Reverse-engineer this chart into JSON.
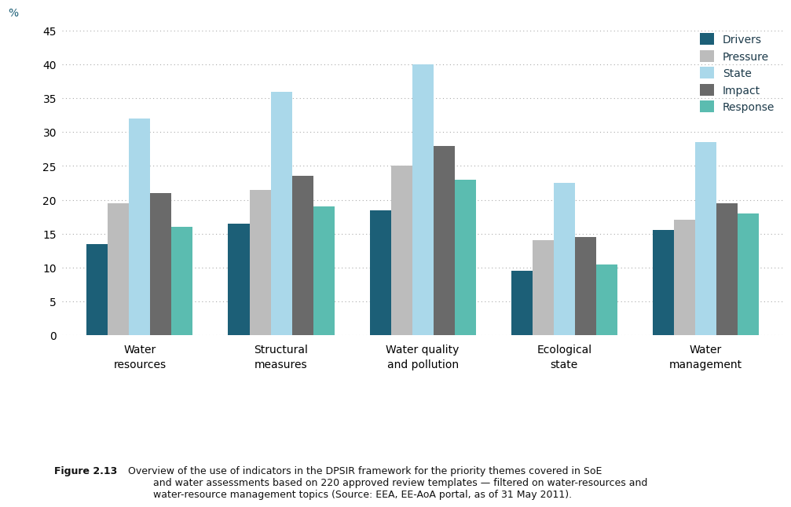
{
  "categories": [
    "Water\nresources",
    "Structural\nmeasures",
    "Water quality\nand pollution",
    "Ecological\nstate",
    "Water\nmanagement"
  ],
  "series": {
    "Drivers": [
      13.5,
      16.5,
      18.5,
      9.5,
      15.5
    ],
    "Pressure": [
      19.5,
      21.5,
      25.0,
      14.0,
      17.0
    ],
    "State": [
      32.0,
      36.0,
      40.0,
      22.5,
      28.5
    ],
    "Impact": [
      21.0,
      23.5,
      28.0,
      14.5,
      19.5
    ],
    "Response": [
      16.0,
      19.0,
      23.0,
      10.5,
      18.0
    ]
  },
  "colors": {
    "Drivers": "#1c5f77",
    "Pressure": "#bcbcbc",
    "State": "#aad8ea",
    "Impact": "#6a6a6a",
    "Response": "#5bbcb0"
  },
  "ylim": [
    0,
    45
  ],
  "yticks": [
    0,
    5,
    10,
    15,
    20,
    25,
    30,
    35,
    40,
    45
  ],
  "ylabel": "%",
  "legend_order": [
    "Drivers",
    "Pressure",
    "State",
    "Impact",
    "Response"
  ],
  "caption_bold": "Figure 2.13",
  "caption_rest": " Overview of the use of indicators in the DPSIR framework for the priority themes covered in SoE\n         and water assessments based on 220 approved review templates — filtered on water-resources and\n         water-resource management topics (Source: EEA, EE-AoA portal, as of 31 May 2011).",
  "background_color": "#ffffff",
  "grid_color": "#aaaaaa",
  "bar_edge_color": "none"
}
